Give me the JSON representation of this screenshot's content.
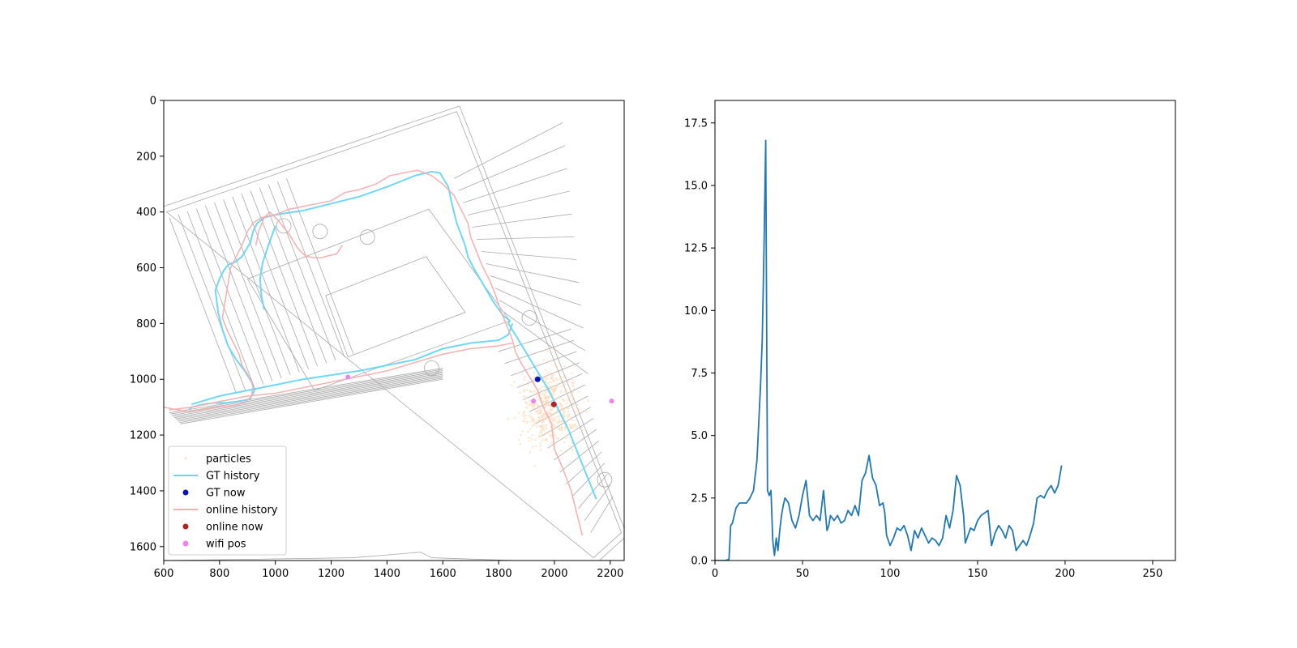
{
  "chart_data": [
    {
      "type": "scatter",
      "panel": "map",
      "background": "building floor plan (grey line drawing, rotated)",
      "xlim": [
        600,
        2250
      ],
      "ylim": [
        1650,
        0
      ],
      "x_ticks": [
        "600",
        "800",
        "1000",
        "1200",
        "1400",
        "1600",
        "1800",
        "2000",
        "2200"
      ],
      "y_ticks": [
        "0",
        "200",
        "400",
        "600",
        "800",
        "1000",
        "1200",
        "1400",
        "1600"
      ],
      "legend_position": "lower-left",
      "legend": [
        {
          "key": "particles",
          "label": "particles",
          "marker": "dot",
          "color": "#fde0c5"
        },
        {
          "key": "gt_history",
          "label": "GT history",
          "marker": "line",
          "color": "#66d6f5"
        },
        {
          "key": "gt_now",
          "label": "GT now",
          "marker": "dot",
          "color": "#1010b8"
        },
        {
          "key": "online_history",
          "label": "online history",
          "marker": "line",
          "color": "#f4b0b0"
        },
        {
          "key": "online_now",
          "label": "online now",
          "marker": "dot",
          "color": "#b22222"
        },
        {
          "key": "wifi_pos",
          "label": "wifi pos",
          "marker": "dot",
          "color": "#ee82ee"
        }
      ],
      "series": [
        {
          "name": "GT history",
          "color": "#66d6f5",
          "x": [
            2150,
            2130,
            2090,
            2050,
            2010,
            1980,
            1950,
            1920,
            1890,
            1860,
            1835,
            1840,
            1815,
            1780,
            1745,
            1710,
            1690,
            1680,
            1665,
            1650,
            1640,
            1630,
            1620,
            1605,
            1590,
            1560,
            1500,
            1400,
            1300,
            1200,
            1100,
            1000,
            960,
            935,
            920,
            910,
            880,
            855,
            830,
            815,
            800,
            785,
            795,
            810,
            830,
            860,
            890,
            915,
            925,
            915,
            910,
            890,
            860,
            820,
            780,
            740,
            700,
            690
          ],
          "y": [
            1430,
            1380,
            1280,
            1180,
            1100,
            1040,
            990,
            940,
            890,
            840,
            800,
            790,
            770,
            720,
            660,
            600,
            560,
            520,
            480,
            440,
            400,
            360,
            310,
            285,
            260,
            255,
            270,
            310,
            345,
            370,
            395,
            410,
            420,
            440,
            470,
            510,
            560,
            580,
            590,
            610,
            640,
            680,
            760,
            820,
            880,
            930,
            970,
            1010,
            1040,
            1060,
            1070,
            1075,
            1080,
            1085,
            1085,
            1090,
            1100,
            1110
          ]
        },
        {
          "name": "GT history (extra)",
          "color": "#66d6f5",
          "x": [
            960,
            950,
            945,
            955,
            975,
            1000
          ],
          "y": [
            750,
            700,
            640,
            580,
            520,
            450
          ]
        },
        {
          "name": "GT history (lower)",
          "color": "#66d6f5",
          "x": [
            700,
            800,
            900,
            1000,
            1100,
            1200,
            1300,
            1400,
            1500,
            1600,
            1700,
            1800,
            1835,
            1850
          ],
          "y": [
            1090,
            1060,
            1040,
            1020,
            1000,
            985,
            970,
            950,
            930,
            890,
            870,
            860,
            840,
            800
          ]
        },
        {
          "name": "online history",
          "color": "#f4b0b0",
          "x": [
            2100,
            2080,
            2060,
            2030,
            2000,
            1990,
            1960,
            1940,
            1910,
            1880,
            1860,
            1850,
            1830,
            1810,
            1790,
            1770,
            1740,
            1720,
            1700,
            1690,
            1660,
            1640,
            1600,
            1560,
            1510,
            1460,
            1410,
            1360,
            1300,
            1250,
            1200,
            1150,
            1100,
            1050,
            1000,
            950,
            920,
            900,
            880,
            860,
            840,
            830,
            820,
            810,
            830,
            850,
            870,
            880,
            900,
            920,
            915,
            895,
            870,
            840,
            800,
            760,
            720,
            690,
            650,
            600
          ],
          "y": [
            1560,
            1480,
            1400,
            1320,
            1250,
            1160,
            1100,
            1040,
            990,
            940,
            900,
            860,
            810,
            760,
            700,
            650,
            590,
            540,
            490,
            440,
            380,
            340,
            300,
            270,
            250,
            260,
            270,
            300,
            320,
            330,
            360,
            370,
            380,
            390,
            410,
            420,
            440,
            470,
            520,
            560,
            600,
            660,
            720,
            780,
            830,
            870,
            910,
            950,
            980,
            1020,
            1060,
            1080,
            1090,
            1095,
            1100,
            1105,
            1110,
            1115,
            1110,
            1100
          ]
        },
        {
          "name": "online history (inner loop)",
          "color": "#f4b0b0",
          "x": [
            1240,
            1220,
            1160,
            1110,
            1080,
            1050,
            1010,
            980,
            960,
            940,
            930
          ],
          "y": [
            520,
            550,
            565,
            560,
            530,
            480,
            430,
            400,
            420,
            470,
            520
          ]
        },
        {
          "name": "online history (lower)",
          "color": "#f4b0b0",
          "x": [
            620,
            700,
            800,
            900,
            1000,
            1100,
            1200,
            1300,
            1400,
            1500,
            1600,
            1700,
            1800,
            1850
          ],
          "y": [
            1110,
            1100,
            1080,
            1060,
            1050,
            1030,
            1010,
            990,
            970,
            940,
            910,
            890,
            880,
            870
          ]
        }
      ],
      "points": {
        "gt_now": {
          "x": 1940,
          "y": 1000
        },
        "online_now": {
          "x": 1998,
          "y": 1090
        },
        "wifi_pos": [
          {
            "x": 1260,
            "y": 992
          },
          {
            "x": 1925,
            "y": 1078
          },
          {
            "x": 2205,
            "y": 1078
          }
        ],
        "particles_center": {
          "x": 1990,
          "y": 1100
        },
        "particles_spread": {
          "x": 110,
          "y": 140
        }
      }
    },
    {
      "type": "line",
      "panel": "error",
      "color": "#1f77b4",
      "xlim": [
        0,
        263
      ],
      "ylim": [
        0,
        18.4
      ],
      "x_ticks": [
        "0",
        "50",
        "100",
        "150",
        "200",
        "250"
      ],
      "y_ticks": [
        "0.0",
        "2.5",
        "5.0",
        "7.5",
        "10.0",
        "12.5",
        "15.0",
        "17.5"
      ],
      "x": [
        0,
        2,
        4,
        6,
        8,
        9,
        10,
        12,
        14,
        16,
        18,
        20,
        22,
        24,
        25,
        26,
        27,
        28,
        29,
        30,
        31,
        32,
        33,
        34,
        35,
        36,
        37,
        38,
        39,
        40,
        42,
        44,
        46,
        48,
        50,
        52,
        54,
        56,
        58,
        60,
        62,
        64,
        65,
        66,
        68,
        70,
        72,
        74,
        76,
        78,
        80,
        82,
        84,
        86,
        88,
        90,
        92,
        94,
        96,
        97,
        98,
        100,
        102,
        104,
        106,
        108,
        110,
        112,
        114,
        116,
        118,
        120,
        122,
        124,
        126,
        128,
        130,
        132,
        134,
        136,
        138,
        140,
        142,
        143,
        144,
        146,
        148,
        150,
        152,
        154,
        156,
        158,
        160,
        162,
        164,
        166,
        168,
        170,
        172,
        174,
        176,
        178,
        180,
        182,
        184,
        186,
        188,
        190,
        192,
        194,
        196,
        198
      ],
      "y": [
        0,
        0,
        0,
        0,
        0.05,
        1.4,
        1.5,
        2.1,
        2.3,
        2.3,
        2.3,
        2.5,
        2.8,
        4.0,
        5.5,
        7.0,
        8.8,
        12.5,
        16.8,
        2.8,
        2.6,
        2.8,
        0.8,
        0.2,
        0.9,
        0.4,
        1.2,
        1.8,
        2.2,
        2.5,
        2.3,
        1.6,
        1.3,
        1.8,
        2.6,
        3.2,
        1.8,
        1.6,
        1.8,
        1.6,
        2.8,
        1.2,
        1.4,
        1.8,
        1.6,
        1.8,
        1.5,
        1.6,
        2.0,
        1.8,
        2.2,
        1.8,
        3.2,
        3.5,
        4.2,
        3.3,
        3.0,
        2.2,
        2.3,
        1.9,
        1.0,
        0.6,
        0.9,
        1.3,
        1.2,
        1.4,
        1.0,
        0.4,
        1.2,
        0.9,
        1.3,
        1.0,
        0.7,
        0.9,
        0.8,
        0.6,
        0.9,
        1.8,
        1.3,
        2.0,
        3.4,
        3.0,
        1.8,
        0.7,
        0.9,
        1.3,
        1.2,
        1.6,
        1.8,
        1.9,
        2.0,
        0.6,
        1.1,
        1.4,
        1.2,
        0.9,
        1.4,
        1.2,
        0.4,
        0.6,
        0.8,
        0.6,
        1.0,
        1.5,
        2.5,
        2.6,
        2.5,
        2.8,
        3.0,
        2.7,
        3.0,
        3.8
      ]
    }
  ]
}
